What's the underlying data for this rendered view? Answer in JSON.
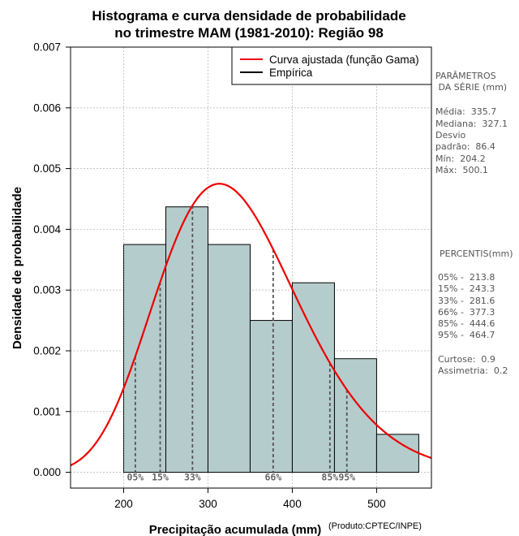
{
  "chart_data": {
    "type": "histogram",
    "title": [
      "Histograma e curva densidade de probabilidade",
      "no trimestre MAM (1981-2010): Região 98"
    ],
    "xlabel": "Precipitação acumulada (mm)",
    "ylabel": "Densidade de probabilidade",
    "credit": "(Produto:CPTEC/INPE)",
    "xlim": [
      137,
      565
    ],
    "ylim": [
      -0.00026,
      0.007
    ],
    "xticks": [
      200,
      300,
      400,
      500
    ],
    "yticks": [
      0.0,
      0.001,
      0.002,
      0.003,
      0.004,
      0.005,
      0.006,
      0.007
    ],
    "ytick_labels": [
      "0.000",
      "0.001",
      "0.002",
      "0.003",
      "0.004",
      "0.005",
      "0.006",
      "0.007"
    ],
    "grid": true,
    "bar_color": "#b5cccc",
    "curve_color": "#ee0000",
    "bins": [
      {
        "x0": 200,
        "x1": 250,
        "density": 0.00375
      },
      {
        "x0": 250,
        "x1": 300,
        "density": 0.00437
      },
      {
        "x0": 300,
        "x1": 350,
        "density": 0.00375
      },
      {
        "x0": 350,
        "x1": 400,
        "density": 0.0025
      },
      {
        "x0": 400,
        "x1": 450,
        "density": 0.00312
      },
      {
        "x0": 450,
        "x1": 500,
        "density": 0.00187
      },
      {
        "x0": 500,
        "x1": 550,
        "density": 0.000625
      }
    ],
    "gamma_fit": {
      "mean": 335.7,
      "sd": 86.4
    },
    "percentile_lines": [
      {
        "label": "05%",
        "value": 213.8
      },
      {
        "label": "15%",
        "value": 243.3
      },
      {
        "label": "33%",
        "value": 281.6
      },
      {
        "label": "66%",
        "value": 377.3
      },
      {
        "label": "85%",
        "value": 444.6
      },
      {
        "label": "95%",
        "value": 464.7
      }
    ],
    "legend": {
      "position": "top-right",
      "entries": [
        {
          "label": "Curva ajustada (função Gama)",
          "color": "#ee0000"
        },
        {
          "label": "Empírica",
          "color": "#000000"
        }
      ]
    }
  },
  "side_panel": {
    "params_title_1": "PARÂMETROS",
    "params_title_2": " DA SÉRIE (mm)",
    "params": [
      "Média:  335.7",
      "Mediana:  327.1",
      "Desvio",
      "padrão:  86.4",
      "Mín:  204.2",
      "Máx:  500.1"
    ],
    "percentis_title": "PERCENTIS(mm)",
    "percentis": [
      "05% -  213.8",
      "15% -  243.3",
      "33% -  281.6",
      "66% -  377.3",
      "85% -  444.6",
      "95% -  464.7"
    ],
    "extra": [
      "Curtose:  0.9",
      "Assimetria:  0.2"
    ]
  }
}
